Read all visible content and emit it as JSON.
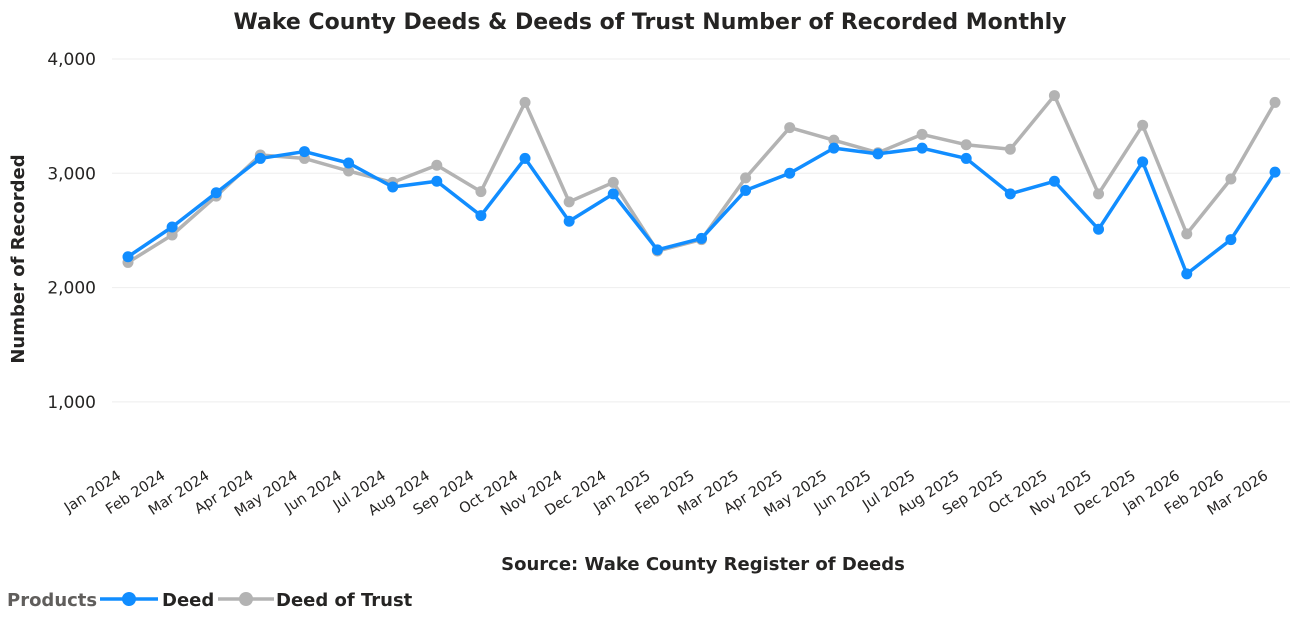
{
  "chart_data": {
    "type": "line",
    "title": "Wake County Deeds & Deeds of Trust Number of Recorded Monthly",
    "xlabel": "Source: Wake County Register of Deeds",
    "ylabel": "Number of Recorded",
    "ylim": [
      500,
      4000
    ],
    "yticks": [
      1000,
      2000,
      3000,
      4000
    ],
    "ytick_labels": [
      "1,000",
      "2,000",
      "3,000",
      "4,000"
    ],
    "grid": true,
    "legend_placement": "bottom-left",
    "legend_title": "Products",
    "categories": [
      "Jan 2024",
      "Feb 2024",
      "Mar 2024",
      "Apr 2024",
      "May 2024",
      "Jun 2024",
      "Jul 2024",
      "Aug 2024",
      "Sep 2024",
      "Oct 2024",
      "Nov 2024",
      "Dec 2024",
      "Jan 2025",
      "Feb 2025",
      "Mar 2025",
      "Apr 2025",
      "May 2025",
      "Jun 2025",
      "Jul 2025",
      "Aug 2025",
      "Sep 2025",
      "Oct 2025",
      "Nov 2025",
      "Dec 2025",
      "Jan 2026",
      "Feb 2026",
      "Mar 2026"
    ],
    "series": [
      {
        "name": "Deed",
        "color": "#118dff",
        "values": [
          2270,
          2530,
          2830,
          3130,
          3190,
          3090,
          2880,
          2930,
          2630,
          3130,
          2580,
          2820,
          2330,
          2430,
          2850,
          3000,
          3220,
          3170,
          3220,
          3130,
          2820,
          2930,
          2510,
          3100,
          2120,
          2420,
          3010
        ]
      },
      {
        "name": "Deed of Trust",
        "color": "#b3b3b3",
        "values": [
          2220,
          2460,
          2800,
          3160,
          3130,
          3020,
          2920,
          3070,
          2840,
          3620,
          2750,
          2920,
          2320,
          2420,
          2960,
          3400,
          3290,
          3180,
          3340,
          3250,
          3210,
          3680,
          2820,
          3420,
          2470,
          2950,
          3620
        ]
      }
    ]
  }
}
